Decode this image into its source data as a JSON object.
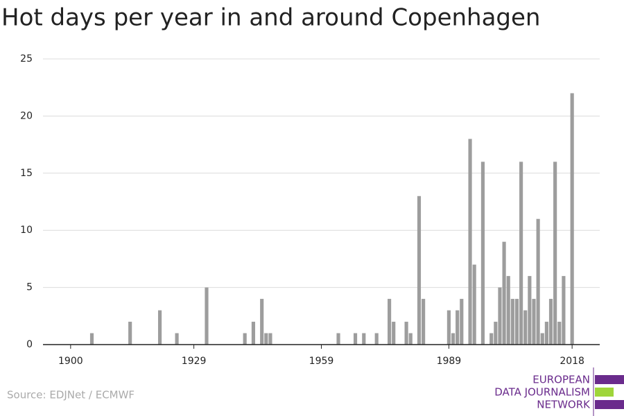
{
  "chart_data": {
    "type": "bar",
    "title": "Hot days per year in and around Copenhagen",
    "x": [
      1900,
      1901,
      1902,
      1903,
      1904,
      1905,
      1906,
      1907,
      1908,
      1909,
      1910,
      1911,
      1912,
      1913,
      1914,
      1915,
      1916,
      1917,
      1918,
      1919,
      1920,
      1921,
      1922,
      1923,
      1924,
      1925,
      1926,
      1927,
      1928,
      1929,
      1930,
      1931,
      1932,
      1933,
      1934,
      1935,
      1936,
      1937,
      1938,
      1939,
      1940,
      1941,
      1942,
      1943,
      1944,
      1945,
      1946,
      1947,
      1948,
      1949,
      1950,
      1951,
      1952,
      1953,
      1954,
      1955,
      1956,
      1957,
      1958,
      1959,
      1960,
      1961,
      1962,
      1963,
      1964,
      1965,
      1966,
      1967,
      1968,
      1969,
      1970,
      1971,
      1972,
      1973,
      1974,
      1975,
      1976,
      1977,
      1978,
      1979,
      1980,
      1981,
      1982,
      1983,
      1984,
      1985,
      1986,
      1987,
      1988,
      1989,
      1990,
      1991,
      1992,
      1993,
      1994,
      1995,
      1996,
      1997,
      1998,
      1999,
      2000,
      2001,
      2002,
      2003,
      2004,
      2005,
      2006,
      2007,
      2008,
      2009,
      2010,
      2011,
      2012,
      2013,
      2014,
      2015,
      2016,
      2017,
      2018
    ],
    "values": [
      0,
      0,
      0,
      0,
      0,
      1,
      0,
      0,
      0,
      0,
      0,
      0,
      0,
      0,
      2,
      0,
      0,
      0,
      0,
      0,
      0,
      3,
      0,
      0,
      0,
      1,
      0,
      0,
      0,
      0,
      0,
      0,
      5,
      0,
      0,
      0,
      0,
      0,
      0,
      0,
      0,
      1,
      0,
      2,
      0,
      4,
      1,
      1,
      0,
      0,
      0,
      0,
      0,
      0,
      0,
      0,
      0,
      0,
      0,
      0,
      0,
      0,
      0,
      1,
      0,
      0,
      0,
      1,
      0,
      1,
      0,
      0,
      1,
      0,
      0,
      4,
      2,
      0,
      0,
      2,
      1,
      0,
      13,
      4,
      0,
      0,
      0,
      0,
      0,
      3,
      1,
      3,
      4,
      0,
      18,
      7,
      0,
      16,
      0,
      1,
      2,
      5,
      9,
      6,
      4,
      4,
      16,
      3,
      6,
      4,
      11,
      1,
      2,
      4,
      16,
      2,
      6,
      0,
      22
    ],
    "color": "#9d9d9d",
    "xlim": [
      1893.5,
      2024.5
    ],
    "xticks": [
      1900,
      1929,
      1959,
      1989,
      2018
    ],
    "ylim": [
      0,
      25
    ],
    "yticks": [
      0,
      5,
      10,
      15,
      20,
      25
    ],
    "grid": true,
    "source": "Source: EDJNet / ECMWF",
    "logo": [
      "EUROPEAN",
      "DATA JOURNALISM",
      "NETWORK"
    ]
  }
}
